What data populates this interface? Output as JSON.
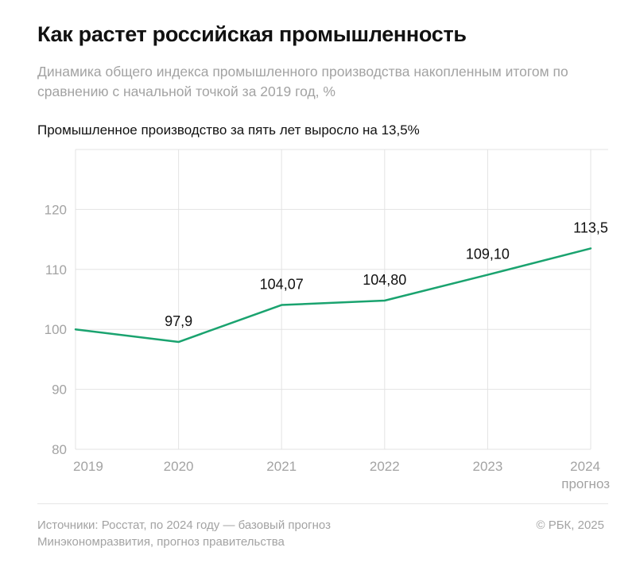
{
  "header": {
    "title": "Как растет российская промышленность",
    "subtitle": "Динамика общего индекса промышленного производства накопленным итогом по сравнению с начальной точкой за 2019 год, %",
    "headline": "Промышленное производство за пять лет выросло на 13,5%"
  },
  "footer": {
    "source_line1": "Источники: Росстат, по 2024 году — базовый прогноз",
    "source_line2": "Минэкономразвития, прогноз правительства",
    "copyright": "© РБК, 2025"
  },
  "colors": {
    "line": "#1aa36f",
    "grid": "#e3e3e3",
    "tick": "#a3a3a3",
    "text": "#111111"
  },
  "chart_data": {
    "type": "line",
    "title": "Как растет российская промышленность",
    "subtitle": "Промышленное производство за пять лет выросло на 13,5%",
    "x": [
      "2019",
      "2020",
      "2021",
      "2022",
      "2023",
      "2024"
    ],
    "x_sublabels": [
      "",
      "",
      "",
      "",
      "",
      "прогноз"
    ],
    "series": [
      {
        "values": [
          100,
          97.9,
          104.07,
          104.8,
          109.1,
          113.5
        ],
        "labels": [
          "",
          "97,9",
          "104,07",
          "104,80",
          "109,10",
          "113,5"
        ]
      }
    ],
    "yticks": [
      80,
      90,
      100,
      110,
      120
    ],
    "ylim": [
      80,
      130
    ],
    "grid": true,
    "legend": "none"
  }
}
